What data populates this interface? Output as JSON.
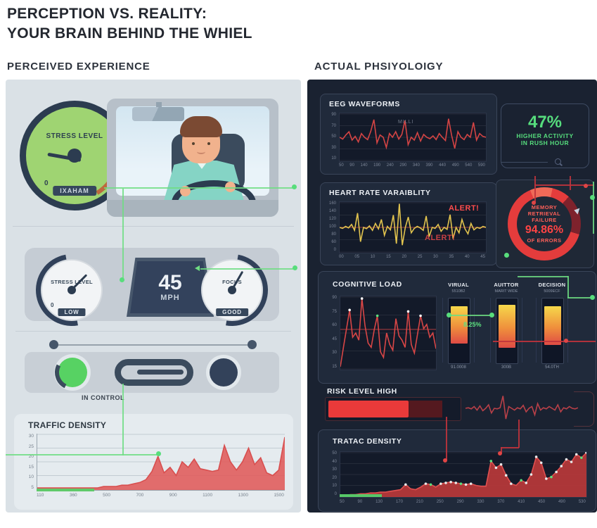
{
  "header": {
    "title_line1": "PERCEPTION VS. REALITY:",
    "title_line2": "YOUR BRAIN BEHIND THE WHIEL",
    "left_section": "PERCEIVED EXPERIENCE",
    "right_section": "ACTUAL PHSIYOLOIGY"
  },
  "perceived": {
    "stress_gauge": {
      "label": "STRESS LEVEL",
      "min_tick": "0",
      "status_badge": "IXAHAM"
    },
    "cluster": {
      "stress": {
        "label": "STRESS LEVEL",
        "min_tick": "0",
        "badge": "LOW"
      },
      "speed_value": "45",
      "speed_unit": "MPH",
      "focus": {
        "label": "FOCUS",
        "badge": "GOOD"
      }
    },
    "control_label": "IN CONTROL",
    "traffic_title": "TRAFFIC DENSITY"
  },
  "actual": {
    "eeg_title": "EEG WAVEFORMS",
    "eeg_annotation": "MILLI",
    "stat": {
      "value": "47%",
      "line1": "HIGHER ACTIVITY",
      "line2": "IN RUSH HOUR"
    },
    "hrv_title": "HEART RATE VARAIBLITY",
    "alert_top": "ALERT!",
    "alert_bottom": "ALERT!",
    "memory": {
      "line1": "MEMORY",
      "line2": "RETRIEVAL",
      "line3": "FAILURE",
      "value": "94.86%",
      "sub": "OF ERRORS"
    },
    "cognitive_title": "COGNITIVE LOAD",
    "channels": {
      "callout": "8.25%",
      "columns": [
        {
          "label": "VIRUAL",
          "sub": "5510B2",
          "value": "91.0008"
        },
        {
          "label": "AUITTOR",
          "sub": "MARIT WIDE",
          "value": "300B"
        },
        {
          "label": "DECISION",
          "sub": "5009ECF",
          "value": "54.0TH"
        }
      ]
    },
    "risk": {
      "title": "RISK LEVEL HIGH",
      "bright_pct": 62,
      "dark_pct": 26
    },
    "traffic_title": "TRATAC DENSITY"
  },
  "colors": {
    "accent_green": "#5ce07e",
    "alert_red": "#ff4d4d",
    "chart_red": "#d84f4f",
    "hrv_yellow": "#e2c44e",
    "panel_dark": "#1a2231",
    "panel_light": "#dae1e6"
  },
  "chart_data": [
    {
      "id": "traffic-left",
      "type": "area",
      "title": "TRAFFIC DENSITY",
      "color": "#d84f4f",
      "fill": "#e05a5a",
      "grid_color": "#c3ccd3",
      "ylim": [
        0,
        40
      ],
      "yticks": [
        "30",
        "25",
        "20",
        "15",
        "10",
        "5"
      ],
      "xticks": [
        "110",
        "360",
        "500",
        "700",
        "900",
        "1100",
        "1300",
        "1500"
      ],
      "values": [
        1,
        1,
        1,
        1,
        1,
        1,
        1,
        1,
        1,
        1,
        1,
        2,
        2,
        2,
        3,
        3,
        4,
        5,
        7,
        13,
        24,
        12,
        16,
        10,
        20,
        16,
        22,
        15,
        14,
        13,
        14,
        32,
        20,
        14,
        20,
        30,
        18,
        23,
        12,
        10,
        14,
        38
      ]
    },
    {
      "id": "eeg",
      "type": "line",
      "title": "EEG WAVEFORMS",
      "color": "#d44444",
      "ylim": [
        0,
        100
      ],
      "yticks": [
        "90",
        "70",
        "50",
        "30",
        "10"
      ],
      "xticks": [
        "50",
        "90",
        "140",
        "190",
        "240",
        "290",
        "340",
        "390",
        "440",
        "490",
        "540",
        "590"
      ],
      "values": [
        50,
        46,
        55,
        62,
        44,
        52,
        40,
        58,
        50,
        45,
        63,
        88,
        38,
        55,
        50,
        28,
        58,
        50,
        62,
        46,
        56,
        86,
        34,
        50,
        44,
        60,
        42,
        56,
        50,
        47,
        53,
        45,
        58,
        50,
        43,
        90,
        54,
        26,
        62,
        50,
        45,
        56,
        50,
        82,
        44,
        58,
        52,
        50
      ]
    },
    {
      "id": "hrv",
      "type": "line",
      "title": "HEART RATE VARAIBLITY",
      "color": "#e2c44e",
      "ylim": [
        0,
        200
      ],
      "refline": 100,
      "refcolor": "#c24646",
      "yticks": [
        "160",
        "140",
        "120",
        "100",
        "80",
        "60",
        "0"
      ],
      "xticks": [
        "00",
        "05",
        "10",
        "15",
        "20",
        "25",
        "30",
        "35",
        "40",
        "45"
      ],
      "values": [
        100,
        96,
        104,
        98,
        112,
        88,
        158,
        42,
        100,
        95,
        106,
        88,
        116,
        94,
        132,
        68,
        104,
        90,
        150,
        34,
        196,
        28,
        100,
        142,
        78,
        96,
        104,
        98,
        88,
        146,
        62,
        100,
        96,
        112,
        84,
        100,
        92,
        152,
        54,
        100,
        78,
        132,
        94,
        74,
        116,
        90,
        100,
        96,
        104,
        100
      ]
    },
    {
      "id": "cognitive",
      "type": "line",
      "title": "COGNITIVE LOAD",
      "color": "#d84646",
      "ylim": [
        0,
        100
      ],
      "refline": 55,
      "refcolor": "#d84646",
      "marker_min": 74,
      "marker_color": "#ffffff",
      "yticks": [
        "90",
        "75",
        "60",
        "45",
        "30",
        "15"
      ],
      "values": [
        3,
        30,
        56,
        82,
        44,
        50,
        40,
        98,
        60,
        36,
        30,
        55,
        74,
        24,
        16,
        50,
        34,
        26,
        70,
        46,
        40,
        30,
        80,
        34,
        22,
        48,
        74,
        56,
        62,
        44,
        50,
        28
      ]
    },
    {
      "id": "channels",
      "type": "bar",
      "categories": [
        "VIRUAL",
        "AUITTOR",
        "DECISION"
      ],
      "levels": [
        {
          "top": 12,
          "height": 58
        },
        {
          "top": 10,
          "height": 66
        },
        {
          "top": 12,
          "height": 60
        }
      ]
    },
    {
      "id": "traffic-right",
      "type": "area",
      "title": "TRATAC DENSITY",
      "color": "#e05050",
      "fill": "#c23a3a",
      "ylim": [
        0,
        52
      ],
      "marker_min": 14,
      "marker_color": "#e8e8e8",
      "yticks": [
        "50",
        "40",
        "30",
        "20",
        "10",
        "0"
      ],
      "xticks": [
        "50",
        "90",
        "130",
        "170",
        "210",
        "250",
        "290",
        "330",
        "370",
        "410",
        "450",
        "490",
        "530"
      ],
      "values": [
        1,
        1,
        2,
        2,
        3,
        3,
        4,
        4,
        5,
        5,
        6,
        7,
        8,
        14,
        9,
        8,
        11,
        15,
        14,
        11,
        15,
        16,
        17,
        16,
        15,
        14,
        15,
        13,
        12,
        12,
        42,
        34,
        38,
        25,
        15,
        13,
        19,
        16,
        26,
        47,
        40,
        21,
        23,
        29,
        36,
        44,
        41,
        50,
        46,
        52
      ]
    },
    {
      "id": "risk-ecg",
      "type": "line",
      "color": "#b84048",
      "ylim": [
        0,
        100
      ],
      "grid": false,
      "values": [
        50,
        52,
        48,
        56,
        44,
        58,
        42,
        50,
        62,
        34,
        50,
        48,
        52,
        92,
        14,
        56,
        50,
        44,
        52,
        48,
        60,
        38,
        50,
        56,
        28,
        66,
        44,
        52,
        48,
        56,
        50,
        44,
        62,
        38,
        52,
        48,
        56,
        50,
        48,
        52
      ]
    }
  ]
}
